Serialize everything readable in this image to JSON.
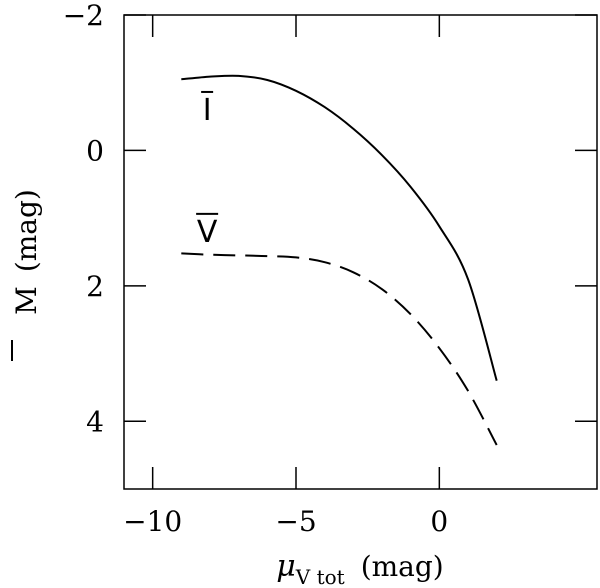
{
  "chart_data": {
    "type": "line",
    "title": "",
    "xlabel": "μ",
    "xlabel_sub": "V tot",
    "xlabel_unit": "(mag)",
    "ylabel": "M",
    "ylabel_unit": "(mag)",
    "xlim": [
      -11,
      5.5
    ],
    "ylim": [
      5,
      -2
    ],
    "y_inverted": true,
    "grid": false,
    "xticks": [
      -10,
      -5,
      0
    ],
    "xtick_labels": [
      "−10",
      "−5",
      "0"
    ],
    "yticks": [
      -2,
      0,
      2,
      4
    ],
    "ytick_labels": [
      "−2",
      "0",
      "2",
      "4"
    ],
    "series": [
      {
        "name": "I",
        "style": "solid",
        "color": "#000000",
        "x": [
          -9,
          -8,
          -7,
          -6,
          -5,
          -4,
          -3,
          -2,
          -1,
          0,
          1,
          2
        ],
        "y": [
          -1.05,
          -1.09,
          -1.1,
          -1.04,
          -0.88,
          -0.64,
          -0.32,
          0.07,
          0.54,
          1.12,
          1.9,
          3.4
        ]
      },
      {
        "name": "V",
        "style": "dashed",
        "color": "#000000",
        "x": [
          -9,
          -8,
          -7,
          -6,
          -5,
          -4,
          -3,
          -2,
          -1,
          0,
          1,
          2
        ],
        "y": [
          1.52,
          1.54,
          1.55,
          1.56,
          1.58,
          1.65,
          1.8,
          2.05,
          2.42,
          2.92,
          3.55,
          4.35
        ]
      }
    ]
  }
}
